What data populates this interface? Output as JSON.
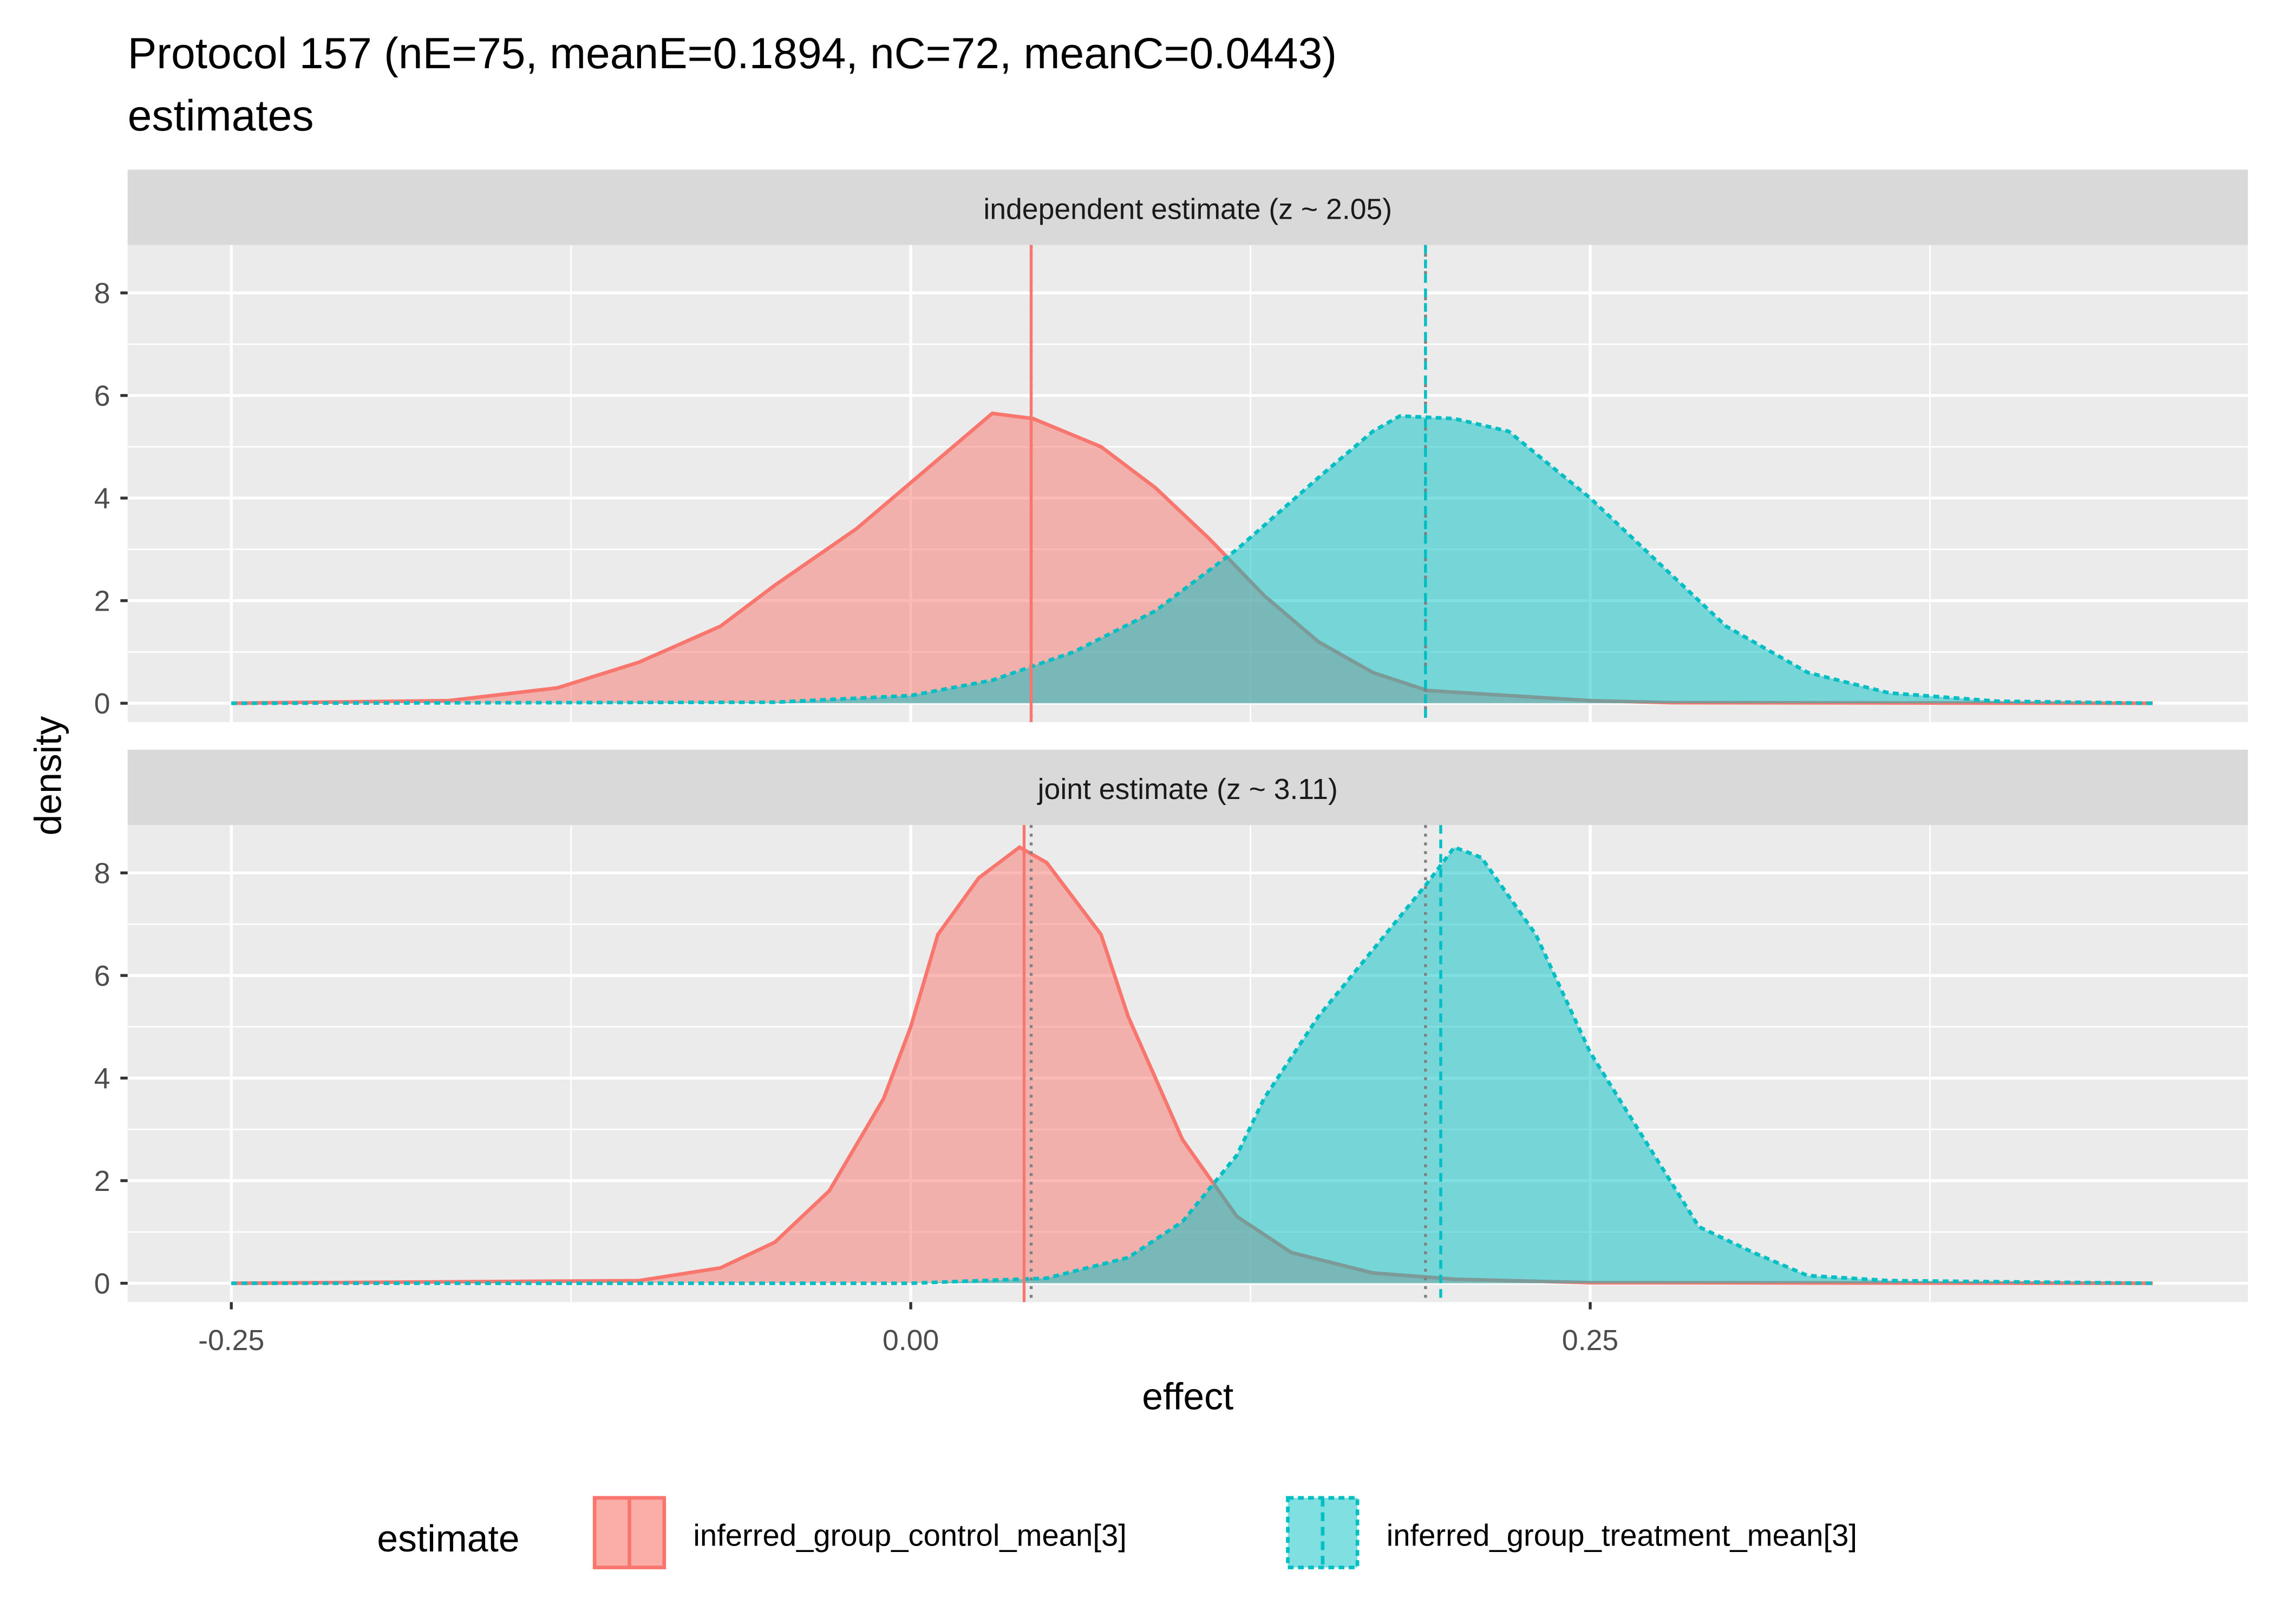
{
  "chart_data": {
    "type": "area",
    "title": "Protocol 157 (nE=75, meanE=0.1894, nC=72, meanC=0.0443)",
    "subtitle": "estimates",
    "xlabel": "effect",
    "ylabel": "density",
    "xlim": [
      -0.25,
      0.457
    ],
    "ylim": [
      0,
      8.7
    ],
    "x_ticks": [
      -0.25,
      0,
      0.25
    ],
    "x_tick_labels": [
      "-0.25",
      "0.00",
      "0.25"
    ],
    "y_ticks": [
      0,
      2,
      4,
      6,
      8
    ],
    "y_tick_labels": [
      "0",
      "2",
      "4",
      "6",
      "8"
    ],
    "grid": true,
    "legend": {
      "title": "estimate",
      "placement": "bottom",
      "entries": [
        "inferred_group_control_mean[3]",
        "inferred_group_treatment_mean[3]"
      ]
    },
    "colors": {
      "control": "#F8766D",
      "treatment": "#00BFC4",
      "reference": "#808080"
    },
    "panels": [
      {
        "strip": "independent estimate (z ~  2.05)",
        "series": [
          {
            "name": "inferred_group_control_mean[3]",
            "x": [
              -0.25,
              -0.17,
              -0.13,
              -0.1,
              -0.07,
              -0.05,
              -0.02,
              0,
              0.02,
              0.03,
              0.045,
              0.07,
              0.09,
              0.11,
              0.13,
              0.15,
              0.17,
              0.19,
              0.22,
              0.25,
              0.28,
              0.457
            ],
            "y": [
              0,
              0.05,
              0.3,
              0.8,
              1.5,
              2.3,
              3.4,
              4.3,
              5.2,
              5.65,
              5.55,
              5.0,
              4.2,
              3.2,
              2.1,
              1.2,
              0.6,
              0.25,
              0.15,
              0.05,
              0.01,
              0
            ],
            "mean_line": 0.0443
          },
          {
            "name": "inferred_group_treatment_mean[3]",
            "x": [
              -0.25,
              -0.05,
              0,
              0.03,
              0.06,
              0.09,
              0.12,
              0.15,
              0.17,
              0.18,
              0.2,
              0.22,
              0.25,
              0.28,
              0.3,
              0.33,
              0.36,
              0.4,
              0.457
            ],
            "y": [
              0,
              0.02,
              0.15,
              0.45,
              1.0,
              1.8,
              3.0,
              4.4,
              5.3,
              5.6,
              5.55,
              5.3,
              4.0,
              2.5,
              1.5,
              0.6,
              0.2,
              0.04,
              0
            ],
            "mean_line": 0.1894
          }
        ],
        "reference_lines": [
          0.0443,
          0.1894
        ]
      },
      {
        "strip": "joint estimate (z ~  3.11)",
        "series": [
          {
            "name": "inferred_group_control_mean[3]",
            "x": [
              -0.25,
              -0.1,
              -0.07,
              -0.05,
              -0.03,
              -0.01,
              0,
              0.01,
              0.025,
              0.04,
              0.05,
              0.07,
              0.08,
              0.09,
              0.1,
              0.12,
              0.14,
              0.17,
              0.2,
              0.25,
              0.457
            ],
            "y": [
              0,
              0.05,
              0.3,
              0.8,
              1.8,
              3.6,
              5.0,
              6.8,
              7.9,
              8.5,
              8.2,
              6.8,
              5.2,
              4.0,
              2.8,
              1.3,
              0.6,
              0.2,
              0.08,
              0.01,
              0
            ],
            "mean_line": 0.0417
          },
          {
            "name": "inferred_group_treatment_mean[3]",
            "x": [
              -0.25,
              0,
              0.05,
              0.08,
              0.1,
              0.12,
              0.13,
              0.15,
              0.17,
              0.19,
              0.2,
              0.21,
              0.23,
              0.25,
              0.27,
              0.29,
              0.31,
              0.33,
              0.36,
              0.457
            ],
            "y": [
              0,
              0,
              0.1,
              0.5,
              1.2,
              2.5,
              3.6,
              5.2,
              6.5,
              7.8,
              8.5,
              8.3,
              6.8,
              4.5,
              2.8,
              1.1,
              0.6,
              0.15,
              0.05,
              0
            ],
            "mean_line": 0.195
          }
        ],
        "reference_lines": [
          0.0443,
          0.1894
        ]
      }
    ]
  }
}
